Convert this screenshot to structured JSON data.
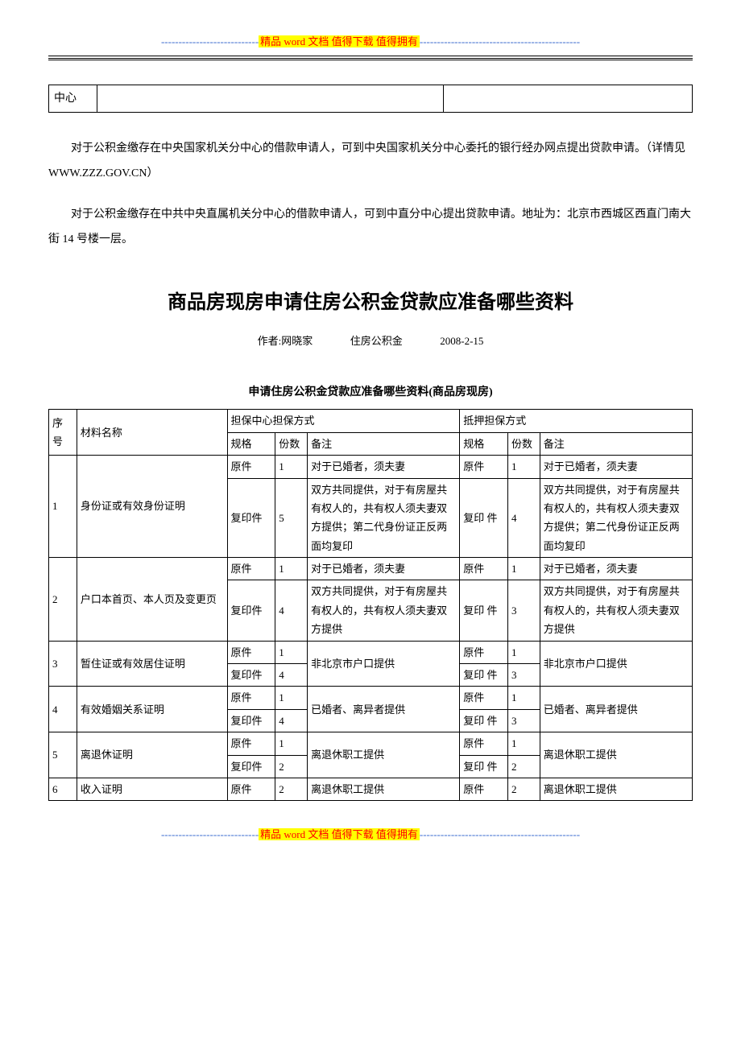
{
  "banner": {
    "dashes_left": "----------------------------",
    "text": "精品 word 文档  值得下载  值得拥有",
    "dashes_right": "----------------------------------------------",
    "color_highlight": "#ffff00",
    "color_text": "#ff0000",
    "color_dashes": "#3366cc"
  },
  "top_table": {
    "cell1": "中心",
    "cell2": "",
    "cell3": ""
  },
  "para1": "对于公积金缴存在中央国家机关分中心的借款申请人，可到中央国家机关分中心委托的银行经办网点提出贷款申请。（详情见 WWW.ZZZ.GOV.CN）",
  "para2": "对于公积金缴存在中共中央直属机关分中心的借款申请人，可到中直分中心提出贷款申请。地址为：北京市西城区西直门南大街 14 号楼一层。",
  "title": "商品房现房申请住房公积金贷款应准备哪些资料",
  "meta": {
    "author_label": "作者:",
    "author": "网晓家",
    "category": "住房公积金",
    "date": "2008-2-15"
  },
  "table_caption": "申请住房公积金贷款应准备哪些资料(商品房现房)",
  "headers": {
    "seq": "序号",
    "material": "材料名称",
    "method1": "担保中心担保方式",
    "method2": "抵押担保方式",
    "spec": "规格",
    "count": "份数",
    "note": "备注"
  },
  "specs": {
    "original": "原件",
    "copy": "复印件",
    "copy2": "复印\n件"
  },
  "rows": [
    {
      "seq": "1",
      "name": "身份证或有效身份证明",
      "m1": {
        "orig_count": "1",
        "copy_count": "5",
        "note_orig": "对于已婚者，须夫妻",
        "note_copy": "双方共同提供，对于有房屋共有权人的，共有权人须夫妻双方提供；第二代身份证正反两面均复印"
      },
      "m2": {
        "orig_count": "1",
        "copy_count": "4",
        "note_orig": "对于已婚者，须夫妻",
        "note_copy": "双方共同提供，对于有房屋共有权人的，共有权人须夫妻双方提供；第二代身份证正反两面均复印"
      }
    },
    {
      "seq": "2",
      "name": "户口本首页、本人页及变更页",
      "m1": {
        "orig_count": "1",
        "copy_count": "4",
        "note_orig": "对于已婚者，须夫妻",
        "note_copy": "双方共同提供，对于有房屋共有权人的，共有权人须夫妻双方提供"
      },
      "m2": {
        "orig_count": "1",
        "copy_count": "3",
        "note_orig": "对于已婚者，须夫妻",
        "note_copy": "双方共同提供，对于有房屋共有权人的，共有权人须夫妻双方提供"
      }
    },
    {
      "seq": "3",
      "name": "暂住证或有效居住证明",
      "m1": {
        "orig_count": "1",
        "copy_count": "4",
        "note": "非北京市户口提供"
      },
      "m2": {
        "orig_count": "1",
        "copy_count": "3",
        "note": "非北京市户口提供"
      }
    },
    {
      "seq": "4",
      "name": "有效婚姻关系证明",
      "m1": {
        "orig_count": "1",
        "copy_count": "4",
        "note": "已婚者、离异者提供"
      },
      "m2": {
        "orig_count": "1",
        "copy_count": "3",
        "note": "已婚者、离异者提供"
      }
    },
    {
      "seq": "5",
      "name": "离退休证明",
      "m1": {
        "orig_count": "1",
        "copy_count": "2",
        "note": "离退休职工提供"
      },
      "m2": {
        "orig_count": "1",
        "copy_count": "2",
        "note": "离退休职工提供"
      }
    },
    {
      "seq": "6",
      "name": "收入证明",
      "m1": {
        "orig_count": "2",
        "note": "离退休职工提供"
      },
      "m2": {
        "orig_count": "2",
        "note": "离退休职工提供"
      }
    }
  ]
}
